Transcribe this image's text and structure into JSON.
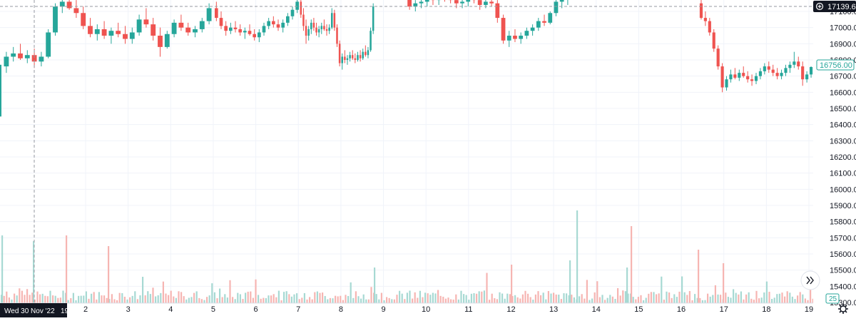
{
  "chart_data": {
    "type": "candlestick",
    "y_ticks": [
      "17100.00",
      "17000.00",
      "16900.00",
      "16800.00",
      "16700.00",
      "16600.00",
      "16500.00",
      "16400.00",
      "16300.00",
      "16200.00",
      "16100.00",
      "16000.00",
      "15900.00",
      "15800.00",
      "15700.00",
      "15600.00",
      "15500.00",
      "15400.00",
      "15300.00"
    ],
    "y_tick_values": [
      17100,
      17000,
      16900,
      16800,
      16700,
      16600,
      16500,
      16400,
      16300,
      16200,
      16100,
      16000,
      15900,
      15800,
      15700,
      15600,
      15500,
      15400,
      15300
    ],
    "x_ticks": [
      "2",
      "3",
      "4",
      "5",
      "6",
      "7",
      "8",
      "9",
      "10",
      "11",
      "12",
      "13",
      "14",
      "15",
      "16",
      "17",
      "18",
      "19"
    ],
    "crosshair_date_label": "Wed 30 Nov '22   19:00",
    "crosshair_price_label": "17139.67",
    "last_price_label": "16756.00",
    "volume_label": "25",
    "ylim": [
      15270,
      17160
    ],
    "up_color": "#26a69a",
    "down_color": "#ef5350",
    "volume_up_color": "#a7d9d3",
    "volume_down_color": "#f6b5b2",
    "segments": [
      {
        "name": "nov30-dec1",
        "bars": [
          [
            16760,
            16850,
            16720,
            16820
          ],
          [
            16820,
            16880,
            16790,
            16840
          ],
          [
            16840,
            16900,
            16800,
            16810
          ],
          [
            16810,
            16860,
            16780,
            16830
          ],
          [
            16830,
            16870,
            16750,
            16790
          ],
          [
            16790,
            16850,
            16760,
            16820
          ],
          [
            16820,
            16990,
            16810,
            16970
          ],
          [
            16970,
            17150,
            16950,
            17130
          ],
          [
            17130,
            17190,
            17090,
            17160
          ],
          [
            17160,
            17200,
            17110,
            17120
          ],
          [
            17120,
            17170,
            17060,
            17090
          ],
          [
            17090,
            17130,
            16990,
            17010
          ],
          [
            17010,
            17060,
            16940,
            16960
          ],
          [
            16960,
            17020,
            16920,
            16990
          ],
          [
            16990,
            17040,
            16930,
            16950
          ],
          [
            16950,
            17000,
            16900,
            16980
          ],
          [
            16980,
            17030,
            16940,
            16960
          ],
          [
            16960,
            17010,
            16900,
            16930
          ],
          [
            16930,
            17000,
            16900,
            16970
          ],
          [
            16970,
            17080,
            16950,
            17050
          ],
          [
            17050,
            17120,
            17000,
            17020
          ],
          [
            17020,
            17060,
            16920,
            16950
          ],
          [
            16950,
            17000,
            16820,
            16880
          ],
          [
            16880,
            16980,
            16870,
            16960
          ],
          [
            16960,
            17050,
            16940,
            17030
          ],
          [
            17030,
            17080,
            16980,
            17000
          ],
          [
            17000,
            17030,
            16950,
            16970
          ],
          [
            16970,
            17010,
            16940,
            16990
          ],
          [
            16990,
            17060,
            16970,
            17040
          ],
          [
            17040,
            17150,
            17020,
            17120
          ]
        ]
      },
      {
        "name": "dec2-dec5",
        "bars": [
          [
            17120,
            17160,
            17040,
            17060
          ],
          [
            17060,
            17100,
            16990,
            17010
          ],
          [
            17010,
            17040,
            16950,
            16980
          ],
          [
            16980,
            17030,
            16960,
            17000
          ],
          [
            17000,
            17040,
            16970,
            16990
          ],
          [
            16990,
            17020,
            16950,
            16970
          ],
          [
            16970,
            17000,
            16930,
            16980
          ],
          [
            16980,
            17020,
            16950,
            16960
          ],
          [
            16960,
            16990,
            16920,
            16940
          ],
          [
            16940,
            16990,
            16910,
            16970
          ],
          [
            16970,
            17030,
            16950,
            17010
          ],
          [
            17010,
            17060,
            16990,
            17040
          ],
          [
            17040,
            17070,
            17000,
            17020
          ],
          [
            17020,
            17050,
            16980,
            17000
          ],
          [
            17000,
            17050,
            16970,
            17030
          ],
          [
            17030,
            17090,
            17010,
            17070
          ],
          [
            17070,
            17130,
            17050,
            17110
          ],
          [
            17110,
            17190,
            17090,
            17160
          ]
        ]
      },
      {
        "name": "dec6-dec8",
        "bars": [
          [
            17160,
            17200,
            17060,
            17080
          ],
          [
            17080,
            17120,
            16980,
            17010
          ],
          [
            17010,
            17050,
            16900,
            16950
          ],
          [
            16950,
            17010,
            16920,
            16990
          ],
          [
            16990,
            17050,
            16960,
            17030
          ],
          [
            17030,
            17060,
            16980,
            17000
          ],
          [
            17000,
            17030,
            16950,
            16970
          ],
          [
            16970,
            17010,
            16940,
            16990
          ],
          [
            16990,
            17030,
            16960,
            17010
          ],
          [
            17010,
            17050,
            16980,
            16990
          ],
          [
            16990,
            17020,
            16950,
            16980
          ],
          [
            16980,
            17020,
            16960,
            17000
          ],
          [
            17000,
            17120,
            16990,
            17090
          ],
          [
            17090,
            17110,
            16980,
            17000
          ],
          [
            17000,
            17020,
            16880,
            16900
          ],
          [
            16900,
            16920,
            16760,
            16780
          ],
          [
            16780,
            16840,
            16740,
            16820
          ],
          [
            16820,
            16860,
            16780,
            16800
          ],
          [
            16800,
            16830,
            16770,
            16810
          ],
          [
            16810,
            16850,
            16790,
            16830
          ],
          [
            16830,
            16860,
            16800,
            16810
          ],
          [
            16810,
            16840,
            16780,
            16800
          ],
          [
            16800,
            16850,
            16790,
            16830
          ],
          [
            16830,
            16860,
            16790,
            16810
          ],
          [
            16810,
            16870,
            16800,
            16850
          ],
          [
            16850,
            16890,
            16820,
            16830
          ],
          [
            16830,
            16880,
            16810,
            16860
          ],
          [
            16860,
            17000,
            16850,
            16980
          ],
          [
            16980,
            17150,
            16960,
            17130
          ]
        ]
      },
      {
        "name": "dec9-dec13",
        "bars": [
          [
            17180,
            17210,
            17110,
            17130
          ],
          [
            17130,
            17170,
            17100,
            17150
          ],
          [
            17150,
            17190,
            17120,
            17160
          ],
          [
            17160,
            17200,
            17130,
            17180
          ],
          [
            17180,
            17210,
            17140,
            17170
          ],
          [
            17170,
            17200,
            17140,
            17190
          ],
          [
            17190,
            17220,
            17160,
            17180
          ],
          [
            17180,
            17210,
            17150,
            17170
          ],
          [
            17170,
            17200,
            17120,
            17150
          ],
          [
            17150,
            17180,
            17120,
            17160
          ],
          [
            17160,
            17200,
            17130,
            17180
          ],
          [
            17180,
            17210,
            17150,
            17170
          ],
          [
            17170,
            17190,
            17110,
            17140
          ],
          [
            17140,
            17180,
            17120,
            17160
          ],
          [
            17160,
            17190,
            17130,
            17150
          ],
          [
            17150,
            17170,
            17030,
            17060
          ],
          [
            17060,
            17080,
            16900,
            16920
          ],
          [
            16920,
            16980,
            16880,
            16950
          ],
          [
            16950,
            16990,
            16910,
            16930
          ],
          [
            16930,
            16970,
            16900,
            16950
          ],
          [
            16950,
            17000,
            16930,
            16980
          ],
          [
            16980,
            17020,
            16950,
            17000
          ],
          [
            17000,
            17060,
            16980,
            17040
          ],
          [
            17040,
            17080,
            17010,
            17030
          ],
          [
            17030,
            17100,
            17020,
            17090
          ],
          [
            17090,
            17180,
            17070,
            17160
          ],
          [
            17160,
            17200,
            17120,
            17180
          ],
          [
            17180,
            17210,
            17140,
            17190
          ]
        ]
      },
      {
        "name": "dec16-dec19",
        "bars": [
          [
            17150,
            17180,
            17050,
            17060
          ],
          [
            17060,
            17100,
            17010,
            17040
          ],
          [
            17040,
            17060,
            16950,
            16970
          ],
          [
            16970,
            16990,
            16850,
            16870
          ],
          [
            16870,
            16890,
            16740,
            16760
          ],
          [
            16760,
            16780,
            16600,
            16630
          ],
          [
            16630,
            16700,
            16610,
            16680
          ],
          [
            16680,
            16740,
            16660,
            16710
          ],
          [
            16710,
            16750,
            16680,
            16690
          ],
          [
            16690,
            16740,
            16670,
            16720
          ],
          [
            16720,
            16760,
            16690,
            16700
          ],
          [
            16700,
            16730,
            16660,
            16680
          ],
          [
            16680,
            16710,
            16640,
            16670
          ],
          [
            16670,
            16720,
            16650,
            16700
          ],
          [
            16700,
            16750,
            16680,
            16730
          ],
          [
            16730,
            16780,
            16710,
            16760
          ],
          [
            16760,
            16790,
            16720,
            16740
          ],
          [
            16740,
            16770,
            16700,
            16720
          ],
          [
            16720,
            16750,
            16680,
            16700
          ],
          [
            16700,
            16740,
            16680,
            16720
          ],
          [
            16720,
            16770,
            16700,
            16750
          ],
          [
            16750,
            16790,
            16720,
            16770
          ],
          [
            16770,
            16850,
            16750,
            16790
          ],
          [
            16790,
            16820,
            16740,
            16760
          ],
          [
            16760,
            16790,
            16640,
            16680
          ],
          [
            16680,
            16730,
            16660,
            16710
          ],
          [
            16710,
            16760,
            16690,
            16756
          ]
        ]
      }
    ]
  }
}
